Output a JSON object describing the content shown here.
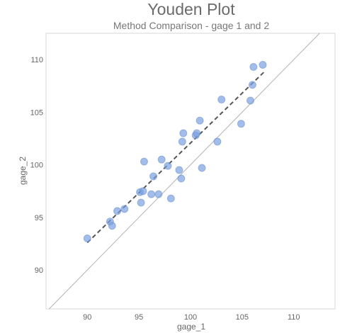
{
  "chart_data": {
    "type": "scatter",
    "title": "Youden Plot",
    "subtitle": "Method Comparison - gage 1 and 2",
    "xlabel": "gage_1",
    "ylabel": "gage_2",
    "xlim": [
      86,
      114
    ],
    "ylim": [
      86.3,
      112.5
    ],
    "xticks": [
      90,
      95,
      100,
      105,
      110
    ],
    "yticks": [
      90,
      95,
      100,
      105,
      110
    ],
    "grid": false,
    "reference_line": "y = x",
    "fit_line": {
      "x": [
        90,
        107.1
      ],
      "y": [
        92.6,
        108.8
      ]
    },
    "points": {
      "x": [
        90,
        92.2,
        92.4,
        92.9,
        93.6,
        95.1,
        95.2,
        95.4,
        95.5,
        96.2,
        96.4,
        96.9,
        97.2,
        97.8,
        98.1,
        98.9,
        99.1,
        99.2,
        99.3,
        100.5,
        100.6,
        100.9,
        101.1,
        102.6,
        103,
        104.9,
        105.8,
        106,
        106.1,
        107
      ],
      "y": [
        93,
        94.6,
        94.2,
        95.6,
        95.8,
        97.4,
        96.4,
        97.5,
        100.3,
        97.2,
        98.9,
        97.2,
        100.5,
        99.9,
        96.8,
        99.5,
        98.7,
        102.2,
        103,
        102.8,
        103,
        104.2,
        99.7,
        102.2,
        106.2,
        103.9,
        106.1,
        107.6,
        109.3,
        109.5
      ]
    }
  }
}
